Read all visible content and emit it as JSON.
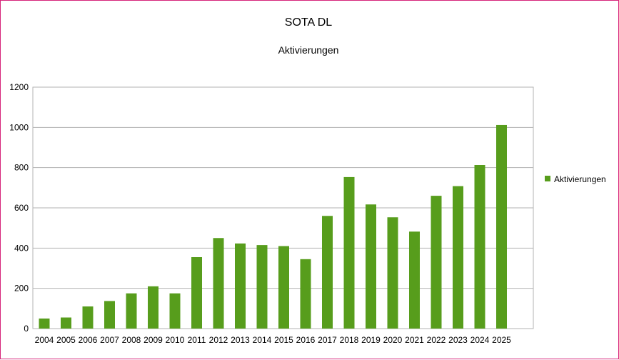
{
  "chart_data": {
    "type": "bar",
    "title": "SOTA DL",
    "subtitle": "Aktivierungen",
    "categories": [
      "2004",
      "2005",
      "2006",
      "2007",
      "2008",
      "2009",
      "2010",
      "2011",
      "2012",
      "2013",
      "2014",
      "2015",
      "2016",
      "2017",
      "2018",
      "2019",
      "2020",
      "2021",
      "2022",
      "2023",
      "2024",
      "2025"
    ],
    "series": [
      {
        "name": "Aktivierungen",
        "color": "#579d1c",
        "values": [
          50,
          55,
          110,
          137,
          175,
          210,
          175,
          355,
          450,
          423,
          415,
          410,
          345,
          560,
          753,
          617,
          553,
          482,
          660,
          708,
          813,
          1012
        ]
      }
    ],
    "ylim": [
      0,
      1200
    ],
    "yticks": [
      0,
      200,
      400,
      600,
      800,
      1000,
      1200
    ],
    "grid": true,
    "legend": "right"
  }
}
